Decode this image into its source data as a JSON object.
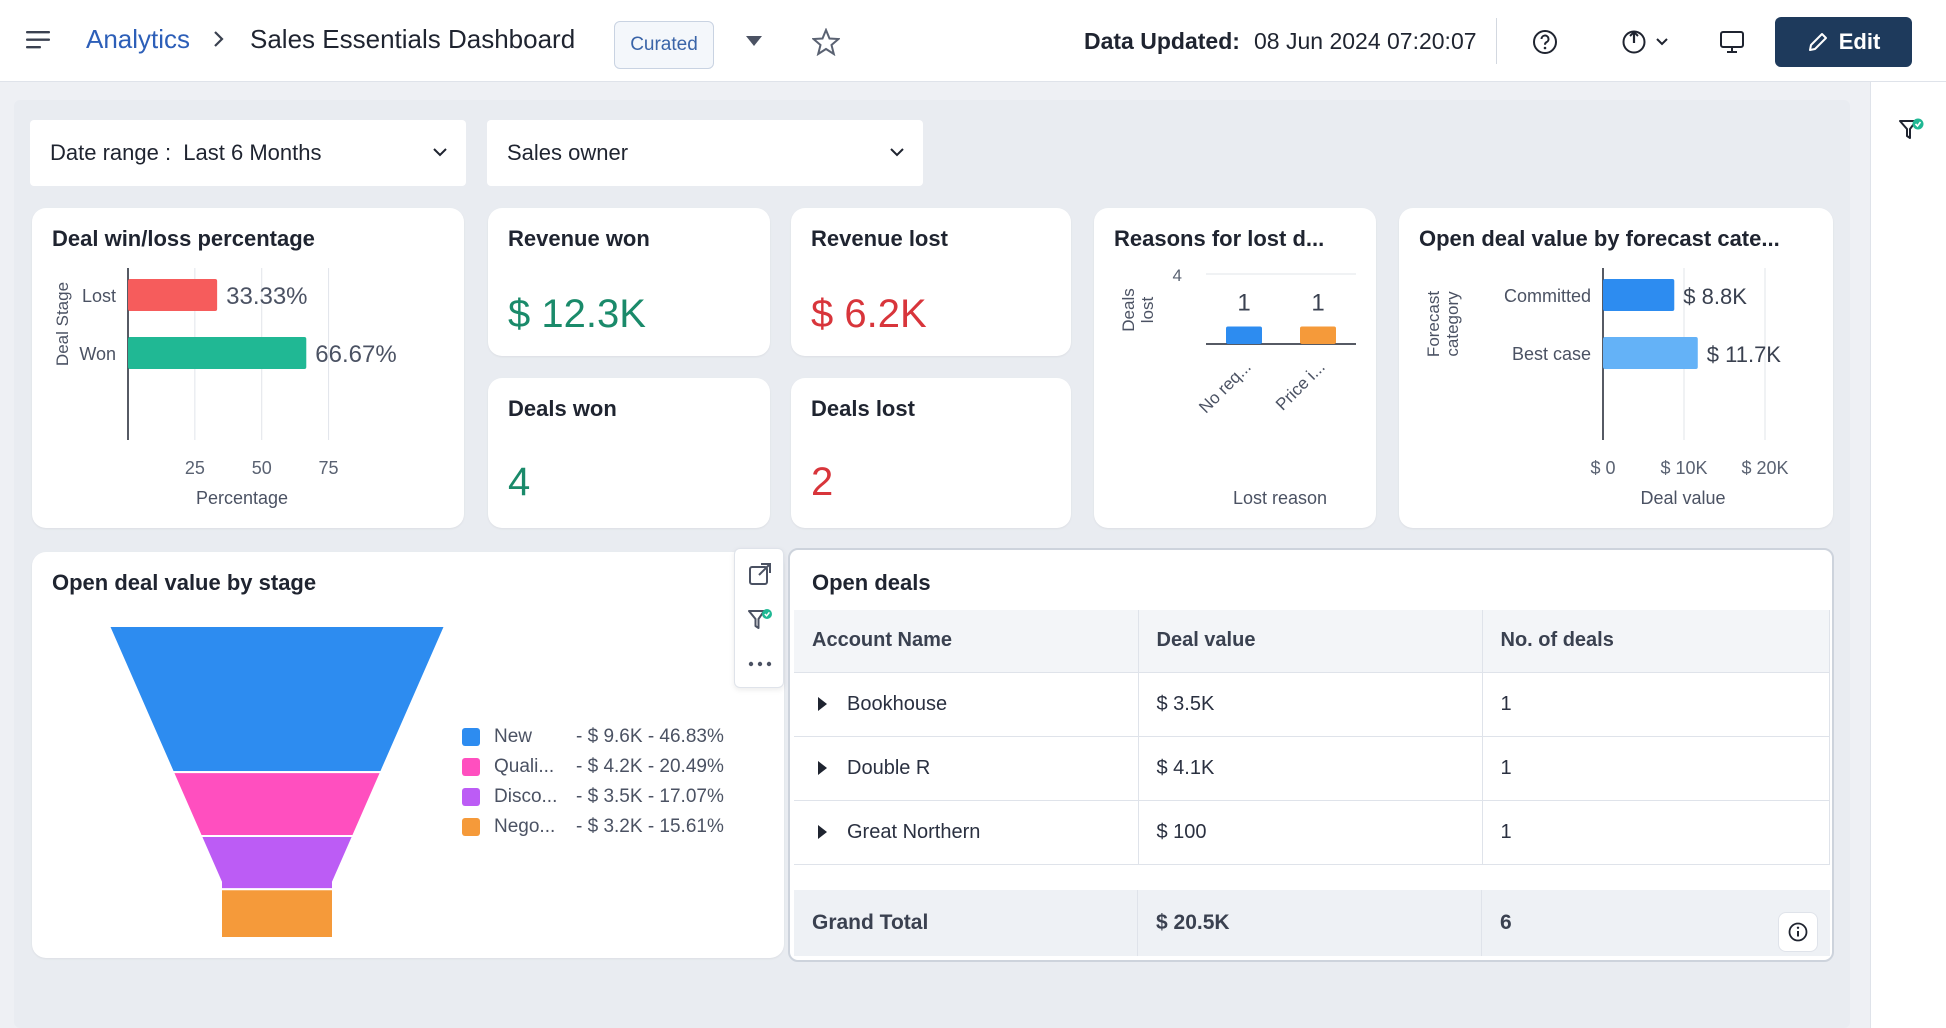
{
  "header": {
    "breadcrumb_root": "Analytics",
    "dashboard_title": "Sales Essentials Dashboard",
    "badge": "Curated",
    "updated_label": "Data Updated:",
    "updated_value": "08 Jun 2024 07:20:07",
    "edit_label": "Edit"
  },
  "filters": {
    "date_range": "Date range :  Last 6 Months",
    "sales_owner": "Sales owner"
  },
  "kpis": {
    "revenue_won": {
      "title": "Revenue won",
      "value": "$ 12.3K",
      "color": "#1a8a6a"
    },
    "revenue_lost": {
      "title": "Revenue lost",
      "value": "$ 6.2K",
      "color": "#d8353b"
    },
    "deals_won": {
      "title": "Deals won",
      "value": "4",
      "color": "#1a8a6a"
    },
    "deals_lost": {
      "title": "Deals lost",
      "value": "2",
      "color": "#d8353b"
    }
  },
  "cards": {
    "winloss_title": "Deal win/loss percentage",
    "reasons_title": "Reasons for lost d...",
    "forecast_title": "Open deal value by forecast cate...",
    "funnel_title": "Open deal value by stage"
  },
  "chart_data": [
    {
      "type": "bar",
      "orientation": "horizontal",
      "categories": [
        "Lost",
        "Won"
      ],
      "values": [
        33.33,
        66.67
      ],
      "value_labels": [
        "33.33%",
        "66.67%"
      ],
      "colors": [
        "#f65c5c",
        "#20b894"
      ],
      "xlabel": "Percentage",
      "ylabel": "Deal Stage",
      "xticks": [
        "25",
        "50",
        "75"
      ],
      "xlim": [
        0,
        87.5
      ]
    },
    {
      "type": "bar",
      "categories": [
        "No req...",
        "Price i..."
      ],
      "values": [
        1,
        1
      ],
      "value_labels": [
        "1",
        "1"
      ],
      "colors": [
        "#2d8cf0",
        "#f59a3a"
      ],
      "xlabel": "Lost reason",
      "ylabel": "Deals lost",
      "ylim": [
        0,
        4
      ],
      "yticks": [
        "4"
      ]
    },
    {
      "type": "bar",
      "orientation": "horizontal",
      "categories": [
        "Committed",
        "Best case"
      ],
      "values": [
        8800,
        11700
      ],
      "value_labels": [
        "$ 8.8K",
        "$ 11.7K"
      ],
      "colors": [
        "#2d8cf0",
        "#64b2f7"
      ],
      "xlabel": "Deal value",
      "ylabel": "Forecast category",
      "xticks": [
        "$ 0",
        "$ 10K",
        "$ 20K"
      ],
      "xlim": [
        0,
        20000
      ]
    },
    {
      "type": "funnel",
      "categories": [
        "New",
        "Quali...",
        "Disco...",
        "Nego..."
      ],
      "values": [
        9600,
        4200,
        3500,
        3200
      ],
      "legend_values": [
        "- $ 9.6K - 46.83%",
        "- $ 4.2K - 20.49%",
        "- $ 3.5K - 17.07%",
        "- $ 3.2K - 15.61%"
      ],
      "colors": [
        "#2d8cf0",
        "#ff4fbf",
        "#bc5cf5",
        "#f59a3a"
      ]
    }
  ],
  "open_deals": {
    "title": "Open deals",
    "columns": [
      "Account Name",
      "Deal value",
      "No. of deals"
    ],
    "rows": [
      {
        "account": "Bookhouse",
        "value": "$ 3.5K",
        "count": "1"
      },
      {
        "account": "Double R",
        "value": "$ 4.1K",
        "count": "1"
      },
      {
        "account": "Great Northern",
        "value": "$ 100",
        "count": "1"
      }
    ],
    "grand_total": {
      "label": "Grand Total",
      "value": "$ 20.5K",
      "count": "6"
    }
  }
}
